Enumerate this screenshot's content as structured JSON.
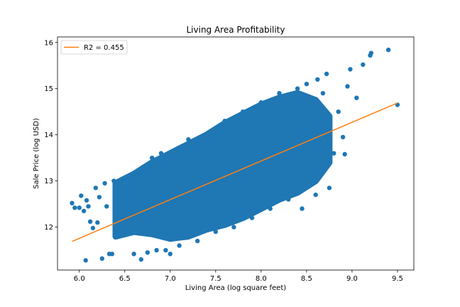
{
  "chart_data": {
    "type": "scatter",
    "title": "Living Area Profitability",
    "xlabel": "Living Area (log square feet)",
    "ylabel": "Sale Price (log USD)",
    "xlim": [
      5.76,
      9.68
    ],
    "ylim": [
      11.07,
      16.12
    ],
    "xticks": [
      6.0,
      6.5,
      7.0,
      7.5,
      8.0,
      8.5,
      9.0,
      9.5
    ],
    "xtick_labels": [
      "6.0",
      "6.5",
      "7.0",
      "7.5",
      "8.0",
      "8.5",
      "9.0",
      "9.5"
    ],
    "yticks": [
      12,
      13,
      14,
      15,
      16
    ],
    "ytick_labels": [
      "12",
      "13",
      "14",
      "15",
      "16"
    ],
    "grid": false,
    "legend": {
      "placement": "top-left",
      "entries": [
        "R2 = 0.455"
      ]
    },
    "series": [
      {
        "name": "",
        "kind": "scatter",
        "color": "#1f77b4",
        "points": [
          [
            5.92,
            12.52
          ],
          [
            5.95,
            12.42
          ],
          [
            6.0,
            12.42
          ],
          [
            6.02,
            12.68
          ],
          [
            6.05,
            12.35
          ],
          [
            6.07,
            11.28
          ],
          [
            6.08,
            12.58
          ],
          [
            6.1,
            12.45
          ],
          [
            6.12,
            12.12
          ],
          [
            6.15,
            11.98
          ],
          [
            6.18,
            12.85
          ],
          [
            6.2,
            12.1
          ],
          [
            6.22,
            12.65
          ],
          [
            6.25,
            11.32
          ],
          [
            6.28,
            12.95
          ],
          [
            6.3,
            12.45
          ],
          [
            6.33,
            11.42
          ],
          [
            6.36,
            11.42
          ],
          [
            6.38,
            13.0
          ],
          [
            6.42,
            12.2
          ],
          [
            6.45,
            12.98
          ],
          [
            6.5,
            13.05
          ],
          [
            6.55,
            11.9
          ],
          [
            6.6,
            11.42
          ],
          [
            6.62,
            13.2
          ],
          [
            6.68,
            11.3
          ],
          [
            6.7,
            13.3
          ],
          [
            6.75,
            11.45
          ],
          [
            6.8,
            13.5
          ],
          [
            6.85,
            11.5
          ],
          [
            6.9,
            13.6
          ],
          [
            6.95,
            11.5
          ],
          [
            7.0,
            11.42
          ],
          [
            7.1,
            11.6
          ],
          [
            7.2,
            13.9
          ],
          [
            7.3,
            11.7
          ],
          [
            7.4,
            14.0
          ],
          [
            7.5,
            11.9
          ],
          [
            7.6,
            14.3
          ],
          [
            7.7,
            12.0
          ],
          [
            7.8,
            14.5
          ],
          [
            7.9,
            12.2
          ],
          [
            8.0,
            14.7
          ],
          [
            8.1,
            12.4
          ],
          [
            8.2,
            14.9
          ],
          [
            8.3,
            12.6
          ],
          [
            8.4,
            15.0
          ],
          [
            8.45,
            12.4
          ],
          [
            8.5,
            15.1
          ],
          [
            8.6,
            12.7
          ],
          [
            8.62,
            15.2
          ],
          [
            8.68,
            14.9
          ],
          [
            8.72,
            15.32
          ],
          [
            8.75,
            12.85
          ],
          [
            8.8,
            13.6
          ],
          [
            8.85,
            14.5
          ],
          [
            8.9,
            13.95
          ],
          [
            8.92,
            13.58
          ],
          [
            8.95,
            15.05
          ],
          [
            8.98,
            15.42
          ],
          [
            9.05,
            14.8
          ],
          [
            9.12,
            15.52
          ],
          [
            9.2,
            15.72
          ],
          [
            9.21,
            15.77
          ],
          [
            9.4,
            15.84
          ],
          [
            9.5,
            14.65
          ]
        ],
        "bands": [
          {
            "x": 6.4,
            "ymin": 11.8,
            "ymax": 12.95
          },
          {
            "x": 6.6,
            "ymin": 11.9,
            "ymax": 13.15
          },
          {
            "x": 6.8,
            "ymin": 11.85,
            "ymax": 13.4
          },
          {
            "x": 7.0,
            "ymin": 11.75,
            "ymax": 13.6
          },
          {
            "x": 7.2,
            "ymin": 11.8,
            "ymax": 13.8
          },
          {
            "x": 7.4,
            "ymin": 11.95,
            "ymax": 14.0
          },
          {
            "x": 7.6,
            "ymin": 12.05,
            "ymax": 14.25
          },
          {
            "x": 7.8,
            "ymin": 12.2,
            "ymax": 14.45
          },
          {
            "x": 8.0,
            "ymin": 12.4,
            "ymax": 14.65
          },
          {
            "x": 8.2,
            "ymin": 12.6,
            "ymax": 14.8
          },
          {
            "x": 8.4,
            "ymin": 12.75,
            "ymax": 14.9
          },
          {
            "x": 8.6,
            "ymin": 13.0,
            "ymax": 14.75
          },
          {
            "x": 8.75,
            "ymin": 13.4,
            "ymax": 14.4
          }
        ]
      },
      {
        "name": "R2 = 0.455",
        "kind": "line",
        "color": "#ff7f0e",
        "points": [
          [
            5.92,
            11.69
          ],
          [
            9.5,
            14.69
          ]
        ]
      }
    ]
  }
}
